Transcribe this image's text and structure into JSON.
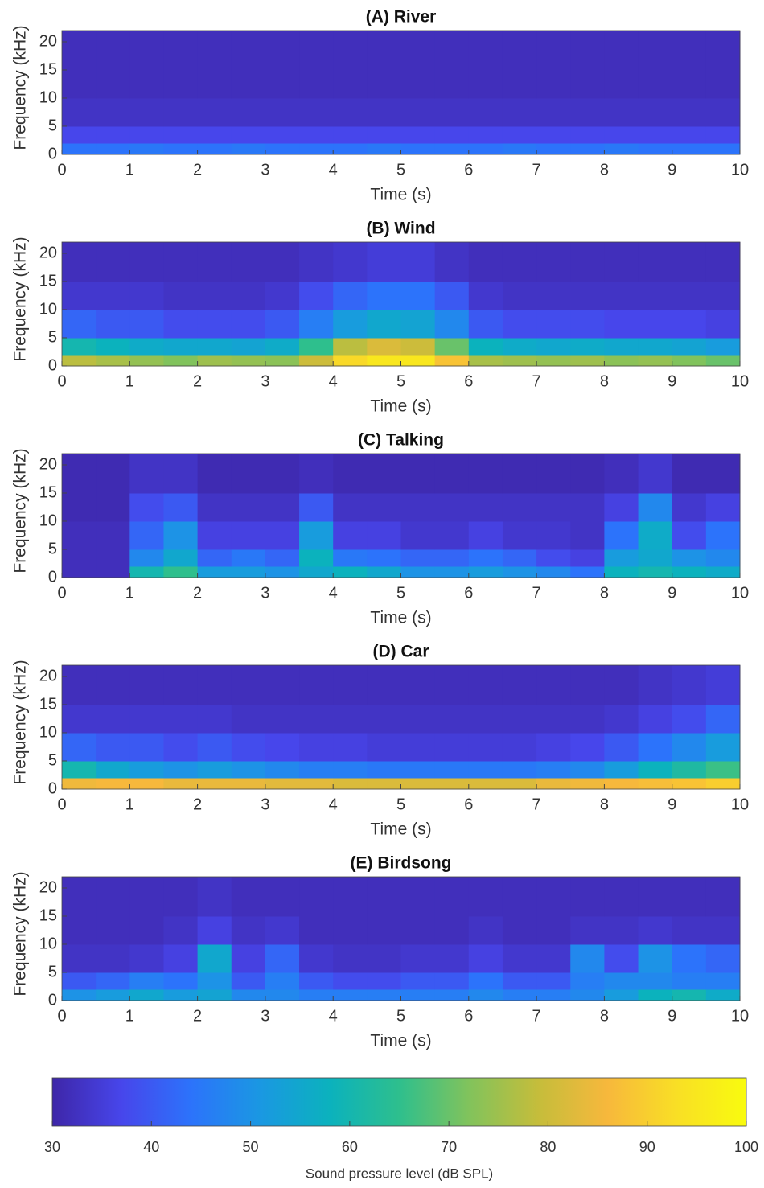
{
  "chart_data": [
    {
      "type": "heatmap",
      "title": "(A) River",
      "xlabel": "Time (s)",
      "ylabel": "Frequency (kHz)",
      "x": [
        0.25,
        0.75,
        1.25,
        1.75,
        2.25,
        2.75,
        3.25,
        3.75,
        4.25,
        4.75,
        5.25,
        5.75,
        6.25,
        6.75,
        7.25,
        7.75,
        8.25,
        8.75,
        9.25,
        9.75
      ],
      "y_edges": [
        0,
        2,
        5,
        10,
        15,
        22
      ],
      "xlim": [
        0,
        10
      ],
      "ylim": [
        0,
        22
      ],
      "xticks": [
        0,
        1,
        2,
        3,
        4,
        5,
        6,
        7,
        8,
        9,
        10
      ],
      "yticks": [
        0,
        5,
        10,
        15,
        20
      ],
      "values": [
        [
          44,
          44,
          45,
          44,
          44,
          45,
          44,
          44,
          44,
          45,
          44,
          44,
          44,
          45,
          44,
          44,
          45,
          44,
          44,
          44
        ],
        [
          37,
          37,
          37,
          37,
          37,
          37,
          37,
          37,
          37,
          37,
          37,
          37,
          37,
          37,
          37,
          37,
          37,
          37,
          37,
          37
        ],
        [
          33,
          33,
          33,
          33,
          33,
          33,
          33,
          33,
          33,
          33,
          33,
          33,
          33,
          33,
          33,
          33,
          33,
          33,
          33,
          33
        ],
        [
          32,
          32,
          32,
          32,
          32,
          32,
          32,
          32,
          32,
          32,
          32,
          32,
          32,
          32,
          32,
          32,
          32,
          32,
          32,
          32
        ],
        [
          32,
          32,
          32,
          32,
          32,
          32,
          32,
          32,
          32,
          32,
          32,
          32,
          32,
          32,
          32,
          32,
          32,
          32,
          32,
          32
        ]
      ]
    },
    {
      "type": "heatmap",
      "title": "(B) Wind",
      "xlabel": "Time (s)",
      "ylabel": "Frequency (kHz)",
      "x": [
        0.25,
        0.75,
        1.25,
        1.75,
        2.25,
        2.75,
        3.25,
        3.75,
        4.25,
        4.75,
        5.25,
        5.75,
        6.25,
        6.75,
        7.25,
        7.75,
        8.25,
        8.75,
        9.25,
        9.75
      ],
      "y_edges": [
        0,
        2,
        5,
        10,
        15,
        22
      ],
      "xlim": [
        0,
        10
      ],
      "ylim": [
        0,
        22
      ],
      "xticks": [
        0,
        1,
        2,
        3,
        4,
        5,
        6,
        7,
        8,
        9,
        10
      ],
      "yticks": [
        0,
        5,
        10,
        15,
        20
      ],
      "values": [
        [
          78,
          76,
          74,
          72,
          75,
          74,
          73,
          80,
          92,
          95,
          95,
          88,
          76,
          75,
          74,
          75,
          73,
          74,
          72,
          70
        ],
        [
          60,
          58,
          56,
          55,
          55,
          54,
          56,
          65,
          78,
          82,
          80,
          70,
          58,
          56,
          55,
          56,
          55,
          55,
          54,
          52
        ],
        [
          42,
          40,
          40,
          38,
          38,
          38,
          40,
          46,
          52,
          55,
          54,
          48,
          40,
          38,
          38,
          38,
          37,
          37,
          37,
          36
        ],
        [
          34,
          34,
          34,
          33,
          33,
          33,
          34,
          38,
          42,
          44,
          44,
          40,
          34,
          33,
          33,
          33,
          33,
          33,
          33,
          33
        ],
        [
          32,
          32,
          32,
          32,
          32,
          32,
          32,
          33,
          34,
          35,
          35,
          33,
          32,
          32,
          32,
          32,
          32,
          32,
          32,
          32
        ]
      ]
    },
    {
      "type": "heatmap",
      "title": "(C) Talking",
      "xlabel": "Time (s)",
      "ylabel": "Frequency (kHz)",
      "x": [
        0.25,
        0.75,
        1.25,
        1.75,
        2.25,
        2.75,
        3.25,
        3.75,
        4.25,
        4.75,
        5.25,
        5.75,
        6.25,
        6.75,
        7.25,
        7.75,
        8.25,
        8.75,
        9.25,
        9.75
      ],
      "y_edges": [
        0,
        2,
        5,
        10,
        15,
        22
      ],
      "xlim": [
        0,
        10
      ],
      "ylim": [
        0,
        22
      ],
      "xticks": [
        0,
        1,
        2,
        3,
        4,
        5,
        6,
        7,
        8,
        9,
        10
      ],
      "yticks": [
        0,
        5,
        10,
        15,
        20
      ],
      "values": [
        [
          32,
          32,
          60,
          65,
          52,
          52,
          50,
          55,
          58,
          55,
          50,
          50,
          52,
          50,
          48,
          44,
          58,
          60,
          58,
          56
        ],
        [
          32,
          32,
          48,
          55,
          42,
          45,
          42,
          58,
          45,
          44,
          42,
          42,
          44,
          42,
          38,
          36,
          52,
          55,
          50,
          48
        ],
        [
          32,
          32,
          42,
          50,
          36,
          36,
          36,
          52,
          36,
          36,
          34,
          34,
          36,
          34,
          34,
          33,
          44,
          56,
          38,
          44
        ],
        [
          31,
          31,
          38,
          40,
          33,
          33,
          33,
          40,
          33,
          33,
          33,
          33,
          33,
          33,
          33,
          33,
          36,
          48,
          34,
          36
        ],
        [
          31,
          31,
          33,
          33,
          31,
          31,
          31,
          32,
          31,
          31,
          31,
          31,
          31,
          31,
          31,
          31,
          32,
          34,
          31,
          31
        ]
      ]
    },
    {
      "type": "heatmap",
      "title": "(D) Car",
      "xlabel": "Time (s)",
      "ylabel": "Frequency (kHz)",
      "x": [
        0.25,
        0.75,
        1.25,
        1.75,
        2.25,
        2.75,
        3.25,
        3.75,
        4.25,
        4.75,
        5.25,
        5.75,
        6.25,
        6.75,
        7.25,
        7.75,
        8.25,
        8.75,
        9.25,
        9.75
      ],
      "y_edges": [
        0,
        2,
        5,
        10,
        15,
        22
      ],
      "xlim": [
        0,
        10
      ],
      "ylim": [
        0,
        22
      ],
      "xticks": [
        0,
        1,
        2,
        3,
        4,
        5,
        6,
        7,
        8,
        9,
        10
      ],
      "yticks": [
        0,
        5,
        10,
        15,
        20
      ],
      "values": [
        [
          85,
          86,
          86,
          84,
          84,
          84,
          83,
          83,
          82,
          82,
          82,
          82,
          82,
          82,
          84,
          85,
          86,
          87,
          88,
          90
        ],
        [
          60,
          55,
          52,
          50,
          52,
          50,
          48,
          46,
          46,
          45,
          45,
          45,
          45,
          45,
          46,
          48,
          52,
          58,
          62,
          66
        ],
        [
          42,
          40,
          40,
          38,
          40,
          38,
          37,
          36,
          36,
          35,
          35,
          35,
          35,
          35,
          36,
          37,
          40,
          44,
          48,
          52
        ],
        [
          34,
          34,
          34,
          34,
          34,
          33,
          33,
          33,
          33,
          33,
          33,
          33,
          33,
          33,
          33,
          33,
          34,
          36,
          38,
          42
        ],
        [
          32,
          32,
          32,
          32,
          32,
          32,
          32,
          32,
          32,
          32,
          32,
          32,
          32,
          32,
          32,
          32,
          32,
          33,
          34,
          35
        ]
      ]
    },
    {
      "type": "heatmap",
      "title": "(E) Birdsong",
      "xlabel": "Time (s)",
      "ylabel": "Frequency (kHz)",
      "x": [
        0.25,
        0.75,
        1.25,
        1.75,
        2.25,
        2.75,
        3.25,
        3.75,
        4.25,
        4.75,
        5.25,
        5.75,
        6.25,
        6.75,
        7.25,
        7.75,
        8.25,
        8.75,
        9.25,
        9.75
      ],
      "y_edges": [
        0,
        2,
        5,
        10,
        15,
        22
      ],
      "xlim": [
        0,
        10
      ],
      "ylim": [
        0,
        22
      ],
      "xticks": [
        0,
        1,
        2,
        3,
        4,
        5,
        6,
        7,
        8,
        9,
        10
      ],
      "yticks": [
        0,
        5,
        10,
        15,
        20
      ],
      "values": [
        [
          50,
          52,
          55,
          52,
          54,
          48,
          48,
          46,
          46,
          46,
          46,
          46,
          48,
          46,
          46,
          48,
          52,
          58,
          60,
          56
        ],
        [
          40,
          42,
          46,
          44,
          50,
          40,
          46,
          40,
          38,
          38,
          40,
          40,
          44,
          40,
          40,
          46,
          48,
          48,
          46,
          46
        ],
        [
          33,
          33,
          34,
          36,
          55,
          36,
          42,
          34,
          33,
          33,
          34,
          34,
          36,
          34,
          34,
          48,
          38,
          50,
          44,
          42
        ],
        [
          32,
          32,
          32,
          33,
          36,
          33,
          34,
          32,
          32,
          32,
          32,
          32,
          33,
          32,
          32,
          33,
          33,
          34,
          33,
          33
        ],
        [
          32,
          32,
          32,
          32,
          33,
          32,
          32,
          32,
          32,
          32,
          32,
          32,
          32,
          32,
          32,
          32,
          32,
          32,
          32,
          32
        ]
      ]
    }
  ],
  "colorbar": {
    "label": "Sound pressure level (dB SPL)",
    "lim": [
      30,
      100
    ],
    "ticks": [
      30,
      40,
      50,
      60,
      70,
      80,
      90,
      100
    ],
    "colormap": [
      "#3e26a8",
      "#4746eb",
      "#2c73fb",
      "#1a98e2",
      "#0bb2bd",
      "#2ebf8d",
      "#81c35c",
      "#c5bd3b",
      "#f7b83c",
      "#f9df25",
      "#f9fb0e"
    ]
  }
}
